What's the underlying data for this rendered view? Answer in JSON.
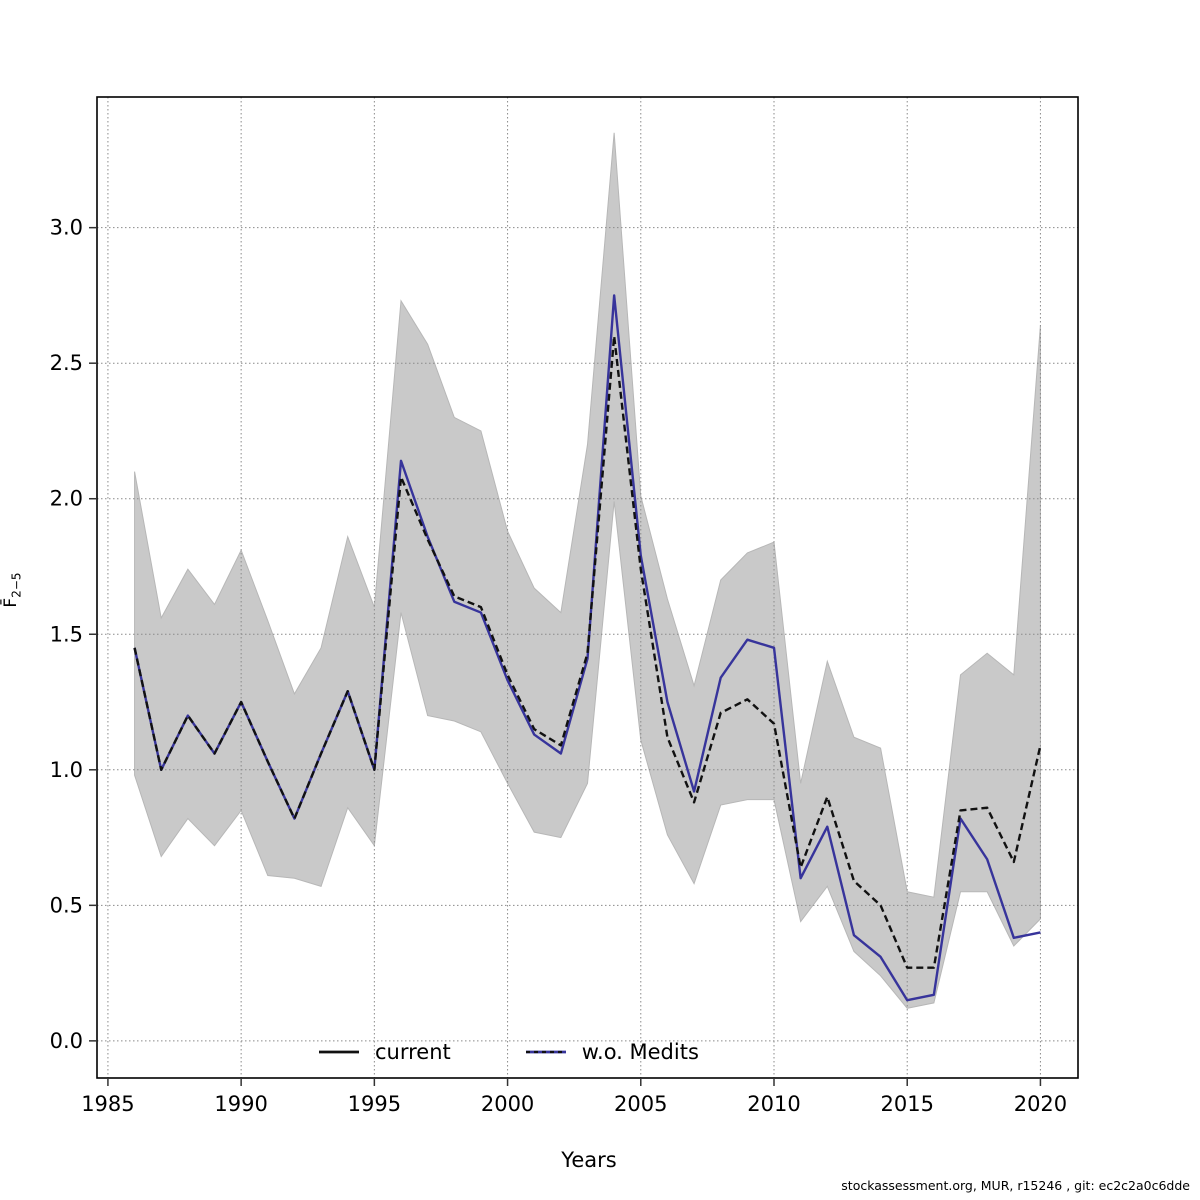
{
  "axes": {
    "x_label": "Years",
    "y_label_main": "F̄",
    "y_label_sub": "2−5"
  },
  "legend": {
    "current": "current",
    "wo_medits": "w.o. Medits"
  },
  "footer": {
    "text": "stockassessment.org, MUR, r15246 , git: ec2c2a0c6dde"
  },
  "chart_data": {
    "type": "line",
    "title": "",
    "xlabel": "Years",
    "ylabel": "Fbar(2-5)",
    "grid": true,
    "legend_position": "bottom-center",
    "xlim": [
      1984.59,
      2021.41
    ],
    "ylim": [
      -0.137,
      3.482
    ],
    "x_tick_values": [
      1985,
      1990,
      1995,
      2000,
      2005,
      2010,
      2015,
      2020
    ],
    "y_tick_labels": [
      "0.0",
      "0.5",
      "1.0",
      "1.5",
      "2.0",
      "2.5",
      "3.0"
    ],
    "y_tick_values": [
      0,
      0.5,
      1,
      1.5,
      2,
      2.5,
      3
    ],
    "x": [
      1986,
      1987,
      1988,
      1989,
      1990,
      1991,
      1992,
      1993,
      1994,
      1995,
      1996,
      1997,
      1998,
      1999,
      2000,
      2001,
      2002,
      2003,
      2004,
      2005,
      2006,
      2007,
      2008,
      2009,
      2010,
      2011,
      2012,
      2013,
      2014,
      2015,
      2016,
      2017,
      2018,
      2019,
      2020
    ],
    "series": [
      {
        "name": "current",
        "color": "#111111",
        "style": "dashed",
        "values": [
          1.45,
          1.0,
          1.2,
          1.06,
          1.25,
          1.03,
          0.82,
          1.06,
          1.29,
          1.0,
          2.08,
          1.85,
          1.64,
          1.6,
          1.35,
          1.15,
          1.09,
          1.43,
          2.6,
          1.74,
          1.12,
          0.88,
          1.21,
          1.26,
          1.17,
          0.64,
          0.9,
          0.59,
          0.5,
          0.27,
          0.27,
          0.85,
          0.86,
          0.66,
          1.09
        ]
      },
      {
        "name": "w.o. Medits",
        "color": "#37349b",
        "style": "solid",
        "values": [
          1.45,
          1.0,
          1.2,
          1.06,
          1.25,
          1.03,
          0.82,
          1.06,
          1.29,
          1.0,
          2.14,
          1.86,
          1.62,
          1.58,
          1.33,
          1.13,
          1.06,
          1.41,
          2.75,
          1.79,
          1.25,
          0.92,
          1.34,
          1.48,
          1.45,
          0.6,
          0.79,
          0.39,
          0.31,
          0.15,
          0.17,
          0.82,
          0.67,
          0.38,
          0.4
        ]
      }
    ],
    "band": {
      "name": "confidence-band",
      "color": "#c9c9c9",
      "edge_color": "#b7b7b7",
      "lower": [
        0.98,
        0.68,
        0.82,
        0.72,
        0.85,
        0.61,
        0.6,
        0.57,
        0.86,
        0.72,
        1.58,
        1.2,
        1.18,
        1.14,
        0.95,
        0.77,
        0.75,
        0.95,
        1.99,
        1.11,
        0.76,
        0.58,
        0.87,
        0.89,
        0.89,
        0.44,
        0.57,
        0.33,
        0.24,
        0.12,
        0.14,
        0.55,
        0.55,
        0.35,
        0.45
      ],
      "upper": [
        2.1,
        1.56,
        1.74,
        1.61,
        1.81,
        1.55,
        1.28,
        1.45,
        1.86,
        1.6,
        2.73,
        2.57,
        2.3,
        2.25,
        1.88,
        1.67,
        1.58,
        2.2,
        3.35,
        2.01,
        1.63,
        1.31,
        1.7,
        1.8,
        1.84,
        0.95,
        1.4,
        1.12,
        1.08,
        0.55,
        0.53,
        1.35,
        1.43,
        1.35,
        2.64
      ]
    }
  }
}
